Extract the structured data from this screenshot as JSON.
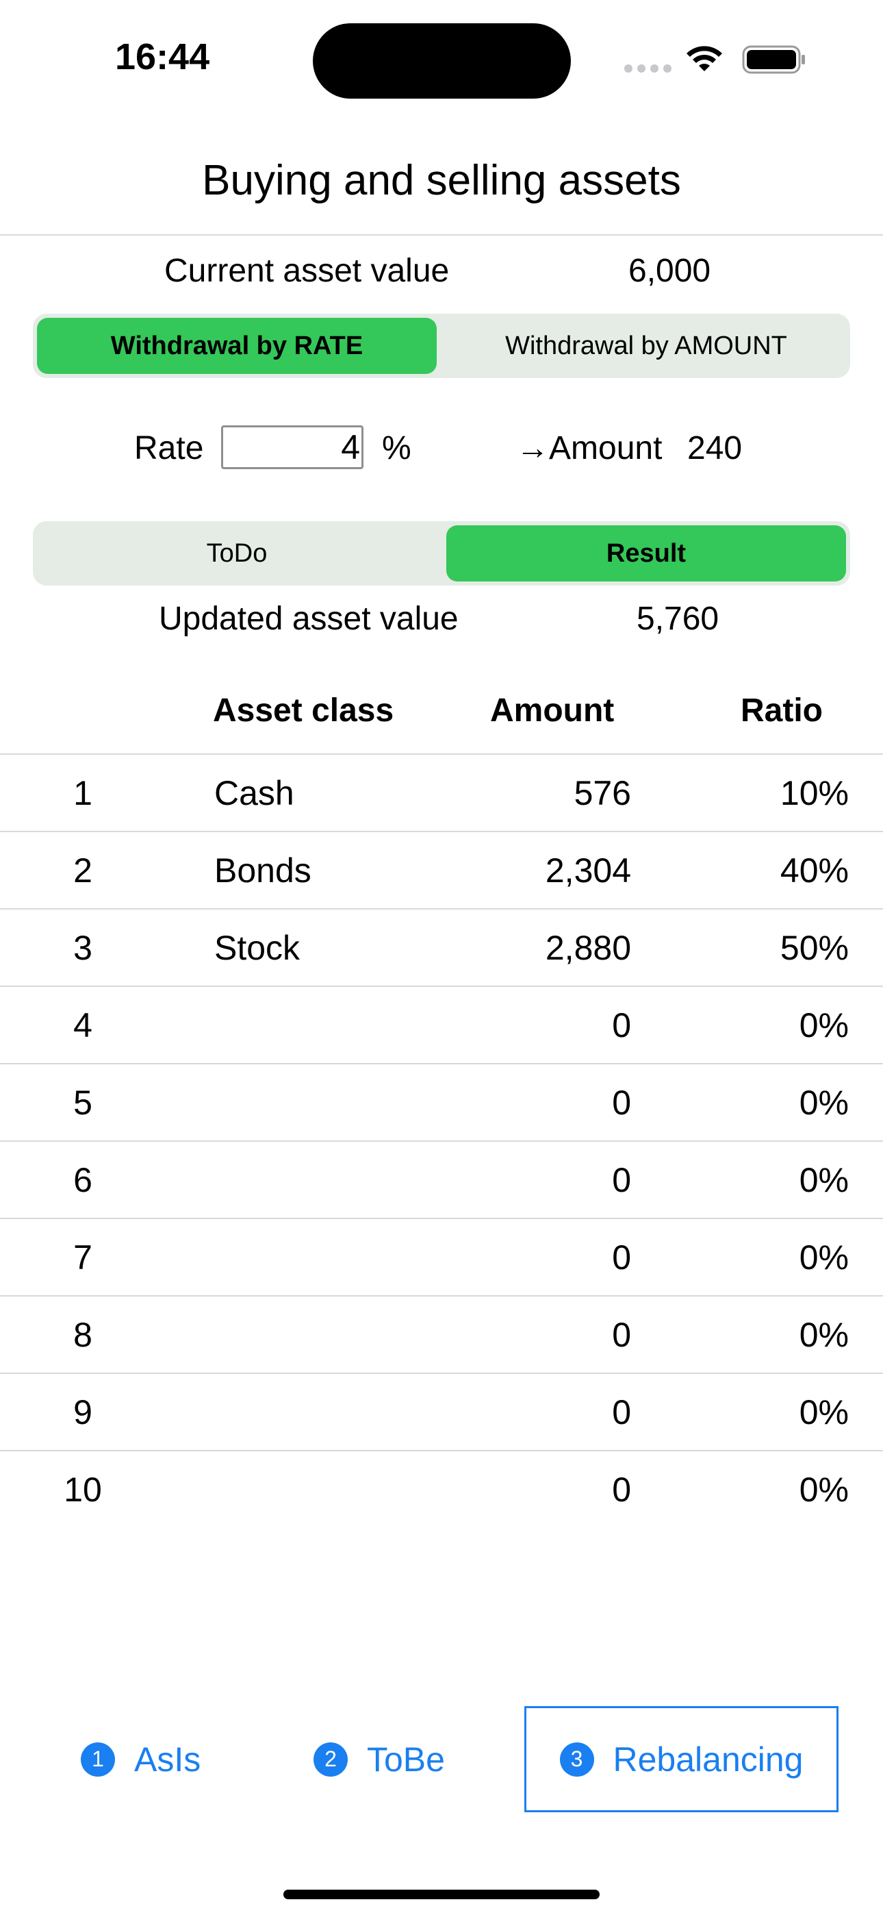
{
  "status": {
    "time": "16:44"
  },
  "title": "Buying and selling assets",
  "current": {
    "label": "Current asset value",
    "value": "6,000"
  },
  "withdrawal_segment": {
    "options": [
      "Withdrawal by RATE",
      "Withdrawal by AMOUNT"
    ],
    "selected": "Withdrawal by RATE"
  },
  "rate": {
    "label": "Rate",
    "value": "4",
    "unit": "%",
    "amount_label": "→Amount",
    "amount_value": "240"
  },
  "view_segment": {
    "options": [
      "ToDo",
      "Result"
    ],
    "selected": "Result"
  },
  "updated": {
    "label": "Updated asset value",
    "value": "5,760"
  },
  "table": {
    "headers": [
      "",
      "Asset class",
      "Amount",
      "Ratio"
    ],
    "rows": [
      {
        "num": "1",
        "asset_class": "Cash",
        "amount": "576",
        "ratio": "10%"
      },
      {
        "num": "2",
        "asset_class": "Bonds",
        "amount": "2,304",
        "ratio": "40%"
      },
      {
        "num": "3",
        "asset_class": "Stock",
        "amount": "2,880",
        "ratio": "50%"
      },
      {
        "num": "4",
        "asset_class": "",
        "amount": "0",
        "ratio": "0%"
      },
      {
        "num": "5",
        "asset_class": "",
        "amount": "0",
        "ratio": "0%"
      },
      {
        "num": "6",
        "asset_class": "",
        "amount": "0",
        "ratio": "0%"
      },
      {
        "num": "7",
        "asset_class": "",
        "amount": "0",
        "ratio": "0%"
      },
      {
        "num": "8",
        "asset_class": "",
        "amount": "0",
        "ratio": "0%"
      },
      {
        "num": "9",
        "asset_class": "",
        "amount": "0",
        "ratio": "0%"
      },
      {
        "num": "10",
        "asset_class": "",
        "amount": "0",
        "ratio": "0%"
      }
    ]
  },
  "tabs": [
    {
      "badge": "1",
      "label": "AsIs"
    },
    {
      "badge": "2",
      "label": "ToBe"
    },
    {
      "badge": "3",
      "label": "Rebalancing",
      "selected": true
    }
  ],
  "colors": {
    "accent_green": "#34c759",
    "accent_blue": "#1a7ff0",
    "segment_bg": "#e4ece5"
  }
}
